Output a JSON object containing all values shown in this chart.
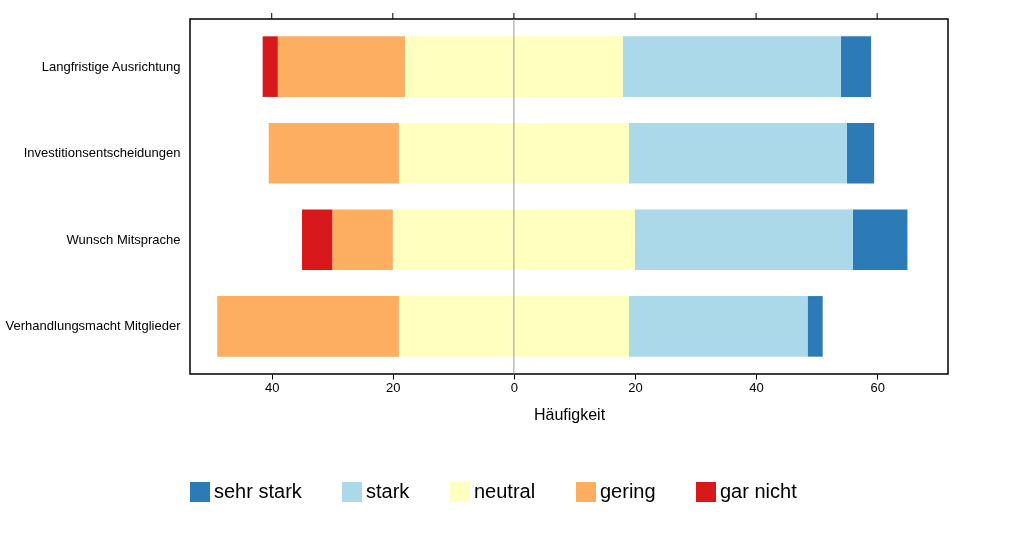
{
  "chart_data": {
    "type": "bar",
    "orientation": "horizontal",
    "xlabel": "Häufigkeit",
    "categories": [
      "Langfristige Ausrichtung",
      "Investitionsentscheidungen",
      "Wunsch Mitsprache",
      "Verhandlungsmacht Mitglieder"
    ],
    "series": [
      {
        "name": "sehr stark",
        "color": "#2c7bb6",
        "values": [
          5,
          4.5,
          9,
          2.5
        ],
        "base": [
          54,
          55,
          56,
          48.5
        ]
      },
      {
        "name": "stark",
        "color": "#abd9e9",
        "values": [
          36,
          36,
          36,
          29.5
        ],
        "base": [
          18,
          19,
          20,
          19
        ]
      },
      {
        "name": "neutral",
        "color": "#ffffbf",
        "values": [
          36,
          38,
          40,
          38
        ],
        "base": [
          -18,
          -19,
          -20,
          -19
        ]
      },
      {
        "name": "gering",
        "color": "#fdae61",
        "values": [
          21,
          21.5,
          10,
          30
        ],
        "base": [
          -39,
          -40.5,
          -30,
          -49
        ]
      },
      {
        "name": "gar nicht",
        "color": "#d7191c",
        "values": [
          2.5,
          null,
          5,
          null
        ],
        "base": [
          -41.5,
          null,
          -35,
          null
        ]
      }
    ],
    "xlim": [
      -53.5,
      71.7
    ],
    "xticks": [
      {
        "value": -40,
        "label": "40"
      },
      {
        "value": -20,
        "label": "20"
      },
      0,
      20,
      40,
      60
    ],
    "ref_lines": [
      {
        "axis": "x",
        "value": 0,
        "color": "#999999"
      }
    ],
    "grid": false,
    "legend": "bottom"
  }
}
